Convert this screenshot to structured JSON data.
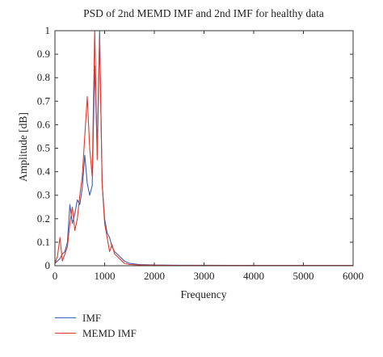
{
  "chart_data": {
    "type": "line",
    "title": "PSD of 2nd MEMD IMF and 2nd IMF for healthy data",
    "xlabel": "Frequency",
    "ylabel": "Amplitude [dB]",
    "xlim": [
      0,
      6000
    ],
    "ylim": [
      0,
      1
    ],
    "xticks": [
      "0",
      "1000",
      "2000",
      "3000",
      "4000",
      "5000",
      "6000"
    ],
    "yticks": [
      "0",
      "0.1",
      "0.2",
      "0.3",
      "0.4",
      "0.5",
      "0.6",
      "0.7",
      "0.8",
      "0.9",
      "1"
    ],
    "grid": false,
    "legend": "bottom-left, below axes",
    "series": [
      {
        "name": "IMF",
        "color": "#3a5fb5",
        "x": [
          0,
          50,
          100,
          150,
          200,
          250,
          300,
          350,
          400,
          450,
          500,
          550,
          600,
          650,
          700,
          750,
          800,
          850,
          900,
          950,
          1000,
          1050,
          1100,
          1150,
          1200,
          1250,
          1300,
          1350,
          1400,
          1500,
          1700,
          2000,
          2500,
          3000,
          4000,
          5000,
          6000
        ],
        "y": [
          0.01,
          0.02,
          0.03,
          0.05,
          0.06,
          0.1,
          0.26,
          0.18,
          0.22,
          0.28,
          0.26,
          0.33,
          0.47,
          0.35,
          0.3,
          0.34,
          0.85,
          0.5,
          1.0,
          0.35,
          0.2,
          0.14,
          0.12,
          0.08,
          0.06,
          0.05,
          0.04,
          0.03,
          0.02,
          0.01,
          0.005,
          0.003,
          0.002,
          0.002,
          0.001,
          0.001,
          0.001
        ]
      },
      {
        "name": "MEMD IMF",
        "color": "#e03a2c",
        "x": [
          0,
          50,
          100,
          150,
          200,
          250,
          300,
          350,
          400,
          450,
          500,
          550,
          600,
          650,
          700,
          750,
          800,
          850,
          900,
          950,
          1000,
          1050,
          1100,
          1150,
          1200,
          1250,
          1300,
          1350,
          1400,
          1500,
          1700,
          2000,
          2500,
          3000,
          4000,
          5000,
          6000
        ],
        "y": [
          0.01,
          0.04,
          0.12,
          0.02,
          0.05,
          0.08,
          0.18,
          0.25,
          0.15,
          0.2,
          0.3,
          0.38,
          0.55,
          0.72,
          0.5,
          0.38,
          1.0,
          0.45,
          0.97,
          0.35,
          0.18,
          0.12,
          0.06,
          0.09,
          0.05,
          0.04,
          0.03,
          0.02,
          0.01,
          0.005,
          0.003,
          0.002,
          0.001,
          0.001,
          0.001,
          0.001,
          0.001
        ]
      }
    ]
  }
}
